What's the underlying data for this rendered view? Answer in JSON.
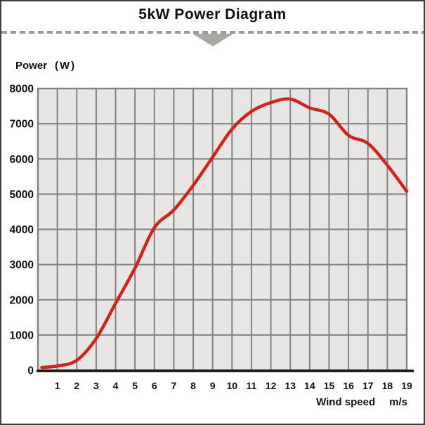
{
  "header": {
    "title": "5kW Power Diagram"
  },
  "axes": {
    "y_title": "Power",
    "y_unit": "(W)",
    "x_title": "Wind speed",
    "x_unit": "m/s"
  },
  "chart_data": {
    "type": "line",
    "title": "5kW Power Diagram",
    "ylabel": "Power (W)",
    "xlabel": "Wind speed m/s",
    "xlim": [
      0,
      19
    ],
    "ylim": [
      0,
      8000
    ],
    "grid": true,
    "legend_position": "none",
    "x_gridline_step": 1,
    "y_gridline_step": 1000,
    "x_ticks": [
      1,
      2,
      3,
      4,
      5,
      6,
      7,
      8,
      9,
      10,
      11,
      12,
      13,
      14,
      15,
      16,
      17,
      18,
      19
    ],
    "y_ticks": [
      0,
      1000,
      2000,
      3000,
      4000,
      5000,
      6000,
      7000,
      8000
    ],
    "series": [
      {
        "name": "power-curve",
        "x": [
          0.2,
          1,
          2,
          3,
          4,
          5,
          6,
          7,
          8,
          9,
          10,
          11,
          12,
          13,
          14,
          15,
          16,
          17,
          18,
          19
        ],
        "y": [
          80,
          120,
          280,
          900,
          1900,
          2900,
          4050,
          4550,
          5250,
          6050,
          6850,
          7350,
          7600,
          7700,
          7450,
          7270,
          6670,
          6440,
          5820,
          5080
        ]
      }
    ],
    "colors": {
      "line": "#cf231b",
      "grid": "#828282",
      "plot_bg": "#e7e6e4",
      "axis": "#111111",
      "dash": "#9c9c9c",
      "triangle": "#a9a8a4",
      "text": "#111111"
    }
  }
}
